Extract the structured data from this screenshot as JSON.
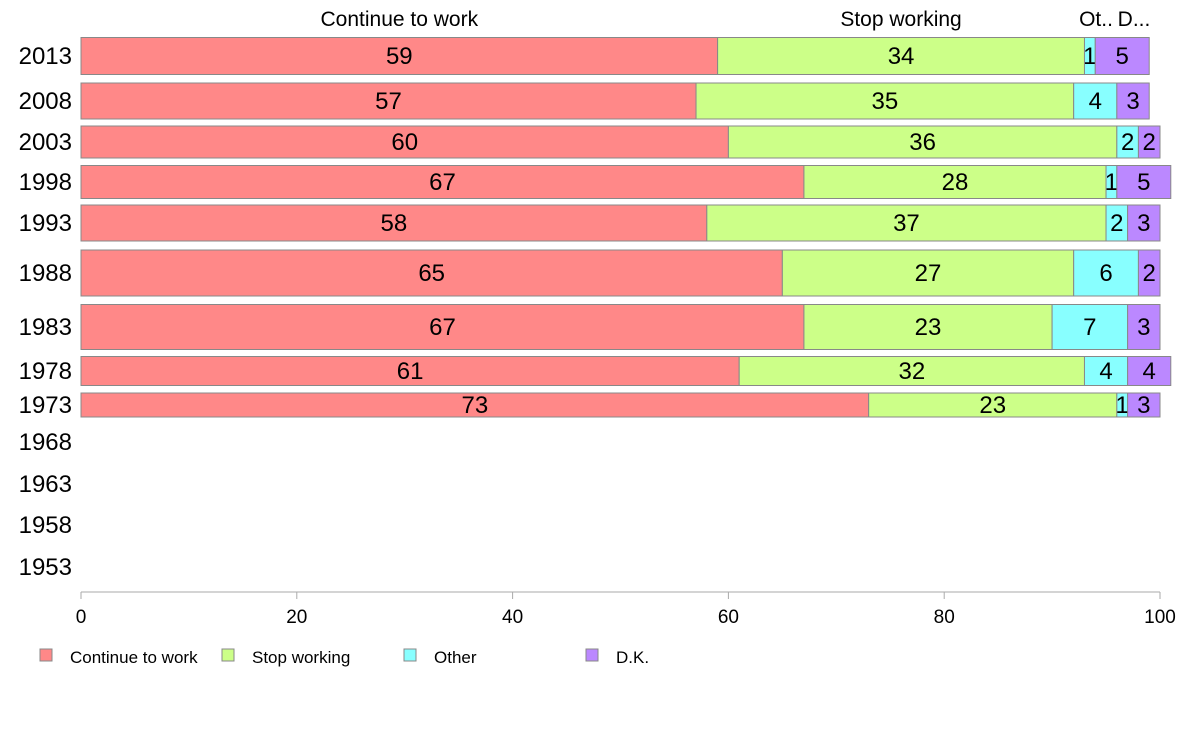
{
  "chart_data": {
    "type": "bar",
    "orientation": "horizontal",
    "stacked": true,
    "grid": false,
    "legend_position": "bottom-left",
    "categories": [
      "2013",
      "2008",
      "2003",
      "1998",
      "1993",
      "1988",
      "1983",
      "1978",
      "1973",
      "1968",
      "1963",
      "1958",
      "1953"
    ],
    "series": [
      {
        "name": "Continue to work",
        "color": "#ff8888",
        "values": [
          59,
          57,
          60,
          67,
          58,
          65,
          67,
          61,
          73,
          null,
          null,
          null,
          null
        ]
      },
      {
        "name": "Stop working",
        "color": "#ccff88",
        "values": [
          34,
          35,
          36,
          28,
          37,
          27,
          23,
          32,
          23,
          null,
          null,
          null,
          null
        ]
      },
      {
        "name": "Other",
        "color": "#88ffff",
        "values": [
          1,
          4,
          2,
          1,
          2,
          6,
          7,
          4,
          1,
          null,
          null,
          null,
          null
        ]
      },
      {
        "name": "D.K.",
        "color": "#bb88ff",
        "values": [
          5,
          3,
          2,
          5,
          3,
          2,
          3,
          4,
          3,
          null,
          null,
          null,
          null
        ]
      }
    ],
    "top_labels": [
      "Continue to work",
      "Stop working",
      "Ot..",
      "D..."
    ],
    "xlim": [
      0,
      100
    ],
    "xticks": [
      "0",
      "20",
      "40",
      "60",
      "80",
      "100"
    ]
  }
}
